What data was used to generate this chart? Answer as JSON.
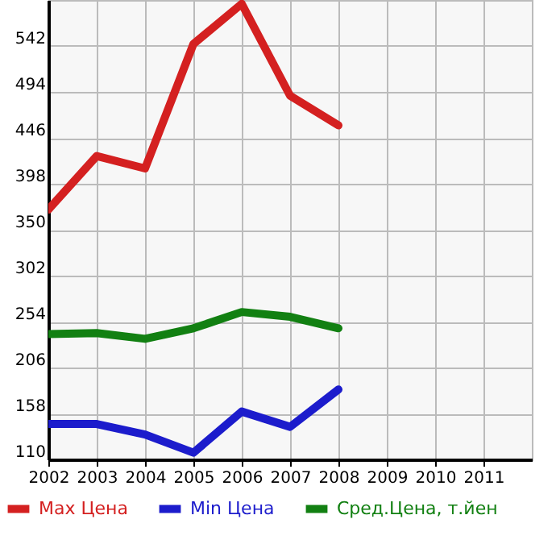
{
  "chart_data": {
    "type": "line",
    "x": [
      2002,
      2003,
      2004,
      2005,
      2006,
      2007,
      2008
    ],
    "series": [
      {
        "name": "Max Цена",
        "color": "#d42020",
        "values": [
          371,
          427,
          414,
          544,
          586,
          490,
          459
        ]
      },
      {
        "name": "Min Цена",
        "color": "#1c1ccc",
        "values": [
          147,
          147,
          136,
          117,
          160,
          144,
          183
        ]
      },
      {
        "name": "Сред.Цена, т.йен",
        "color": "#128012",
        "values": [
          241,
          242,
          236,
          247,
          264,
          259,
          247
        ]
      }
    ],
    "xlim": [
      2002,
      2012
    ],
    "xticks": [
      2002,
      2003,
      2004,
      2005,
      2006,
      2007,
      2008,
      2009,
      2010,
      2011
    ],
    "ylim": [
      110,
      590
    ],
    "yticks": [
      110,
      158,
      206,
      254,
      302,
      350,
      398,
      446,
      494,
      542
    ],
    "grid": true,
    "legend": "bottom"
  }
}
